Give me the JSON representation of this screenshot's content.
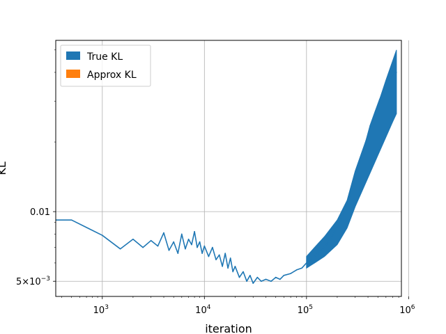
{
  "chart_data": {
    "type": "line",
    "xlabel": "iteration",
    "ylabel": "KL",
    "xscale": "log",
    "yscale": "log",
    "xlim": [
      350,
      850000
    ],
    "ylim": [
      0.0043,
      0.055
    ],
    "grid": true,
    "legend_position": "top-left",
    "x_ticks": [
      {
        "value": 1000,
        "base": "10",
        "exp": "3"
      },
      {
        "value": 10000,
        "base": "10",
        "exp": "4"
      },
      {
        "value": 100000,
        "base": "10",
        "exp": "5"
      },
      {
        "value": 1000000,
        "base": "10",
        "exp": "6"
      }
    ],
    "y_ticks": [
      {
        "value": 0.01,
        "label": "0.01"
      },
      {
        "value": 0.005,
        "mantissa": "5×10",
        "exp": "−3"
      }
    ],
    "series": [
      {
        "name": "True KL",
        "color": "#1f77b4",
        "x": [
          350,
          500,
          1000,
          1500,
          2000,
          2500,
          3000,
          3500,
          4000,
          4500,
          5000,
          5500,
          6000,
          6500,
          7000,
          7500,
          8000,
          8500,
          9000,
          9500,
          10000,
          11000,
          12000,
          13000,
          14000,
          15000,
          16000,
          17000,
          18000,
          19000,
          20000,
          22000,
          24000,
          26000,
          28000,
          30000,
          33000,
          36000,
          40000,
          45000,
          50000,
          55000,
          60000,
          70000,
          80000,
          90000,
          100000,
          120000,
          140000,
          160000,
          180000,
          200000,
          230000,
          260000,
          300000,
          340000,
          380000,
          420000,
          470000,
          520000,
          580000,
          640000,
          700000,
          760000
        ],
        "y": [
          0.0092,
          0.0092,
          0.0079,
          0.0069,
          0.0076,
          0.007,
          0.0075,
          0.0071,
          0.0081,
          0.0068,
          0.0074,
          0.0066,
          0.008,
          0.0069,
          0.0076,
          0.0072,
          0.0082,
          0.007,
          0.0074,
          0.0066,
          0.0071,
          0.0064,
          0.007,
          0.0062,
          0.0065,
          0.0058,
          0.0066,
          0.0057,
          0.0063,
          0.0055,
          0.0058,
          0.0052,
          0.0055,
          0.005,
          0.0053,
          0.0049,
          0.0052,
          0.005,
          0.0051,
          0.005,
          0.0052,
          0.0051,
          0.0053,
          0.0054,
          0.0056,
          0.0057,
          0.006,
          0.0064,
          0.0068,
          0.0073,
          0.0079,
          0.0086,
          0.0098,
          0.0114,
          0.014,
          0.017,
          0.02,
          0.0235,
          0.027,
          0.0305,
          0.034,
          0.037,
          0.039,
          0.04
        ],
        "band_x": [
          100000,
          120000,
          150000,
          200000,
          250000,
          300000,
          400000,
          500000,
          600000,
          700000,
          760000
        ],
        "band_low": [
          0.0057,
          0.006,
          0.0064,
          0.0072,
          0.0085,
          0.0105,
          0.014,
          0.0175,
          0.021,
          0.0245,
          0.0265
        ],
        "band_high": [
          0.0064,
          0.007,
          0.0078,
          0.0092,
          0.0112,
          0.015,
          0.0215,
          0.029,
          0.037,
          0.045,
          0.05
        ]
      },
      {
        "name": "Approx KL",
        "color": "#ff7f0e",
        "x": [],
        "y": []
      }
    ]
  }
}
